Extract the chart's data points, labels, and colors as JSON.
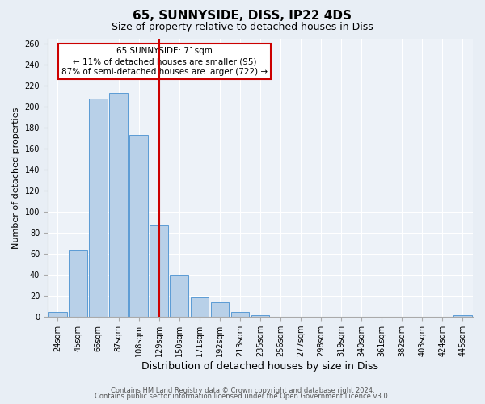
{
  "title": "65, SUNNYSIDE, DISS, IP22 4DS",
  "subtitle": "Size of property relative to detached houses in Diss",
  "xlabel": "Distribution of detached houses by size in Diss",
  "ylabel": "Number of detached properties",
  "bin_labels": [
    "24sqm",
    "45sqm",
    "66sqm",
    "87sqm",
    "108sqm",
    "129sqm",
    "150sqm",
    "171sqm",
    "192sqm",
    "213sqm",
    "235sqm",
    "256sqm",
    "277sqm",
    "298sqm",
    "319sqm",
    "340sqm",
    "361sqm",
    "382sqm",
    "403sqm",
    "424sqm",
    "445sqm"
  ],
  "bar_values": [
    5,
    63,
    208,
    213,
    173,
    87,
    40,
    19,
    14,
    5,
    2,
    0,
    0,
    0,
    0,
    0,
    0,
    0,
    0,
    0,
    2
  ],
  "bar_color": "#b8d0e8",
  "bar_edge_color": "#5b9bd5",
  "vline_x": 5,
  "vline_color": "#cc0000",
  "annotation_title": "65 SUNNYSIDE: 71sqm",
  "annotation_line1": "← 11% of detached houses are smaller (95)",
  "annotation_line2": "87% of semi-detached houses are larger (722) →",
  "annotation_box_color": "#ffffff",
  "annotation_box_edge_color": "#cc0000",
  "ylim": [
    0,
    265
  ],
  "yticks": [
    0,
    20,
    40,
    60,
    80,
    100,
    120,
    140,
    160,
    180,
    200,
    220,
    240,
    260
  ],
  "footer1": "Contains HM Land Registry data © Crown copyright and database right 2024.",
  "footer2": "Contains public sector information licensed under the Open Government Licence v3.0.",
  "bg_color": "#e8eef5",
  "plot_bg_color": "#edf2f8",
  "title_fontsize": 11,
  "subtitle_fontsize": 9,
  "xlabel_fontsize": 9,
  "ylabel_fontsize": 8,
  "tick_fontsize": 7,
  "footer_fontsize": 6
}
